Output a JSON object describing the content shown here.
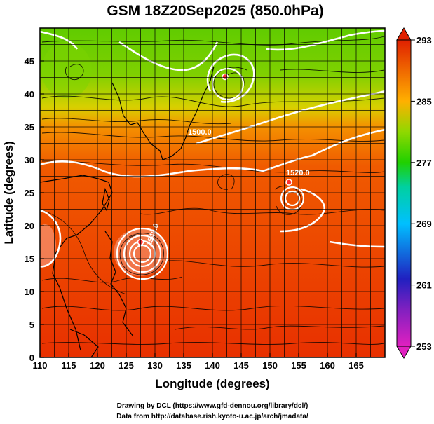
{
  "chart_data": {
    "type": "heatmap",
    "title": "GSM 18Z20Sep2025 (850.0hPa)",
    "xlabel": "Longitude (degrees)",
    "ylabel": "Latitude  (degrees)",
    "xlim": [
      110,
      170
    ],
    "ylim": [
      0,
      50
    ],
    "x_ticks": [
      110,
      115,
      120,
      125,
      130,
      135,
      140,
      145,
      150,
      155,
      160,
      165
    ],
    "y_ticks": [
      0,
      5,
      10,
      15,
      20,
      25,
      30,
      35,
      40,
      45
    ],
    "colorbar": {
      "min": 253,
      "max": 293,
      "ticks": [
        253,
        261,
        269,
        277,
        285,
        293
      ],
      "colors": [
        "#e020c0",
        "#2020c0",
        "#00c0ff",
        "#20d000",
        "#ffb000",
        "#e02000"
      ]
    },
    "contour_labels": [
      "1500.0",
      "1520.0",
      "1540.0"
    ],
    "grid": true,
    "overlays": [
      "temperature shading",
      "geopotential height contours (white)",
      "wind streamlines (black)"
    ],
    "cyclone_centers": [
      {
        "lon": 127.5,
        "lat": 17.5
      },
      {
        "lon": 153.3,
        "lat": 26.6
      },
      {
        "lon": 142.2,
        "lat": 42.6
      }
    ]
  },
  "credits": {
    "line1": "Drawing by DCL (https://www.gfd-dennou.org/library/dcl/)",
    "line2": "Data from http://database.rish.kyoto-u.ac.jp/arch/jmadata/"
  }
}
